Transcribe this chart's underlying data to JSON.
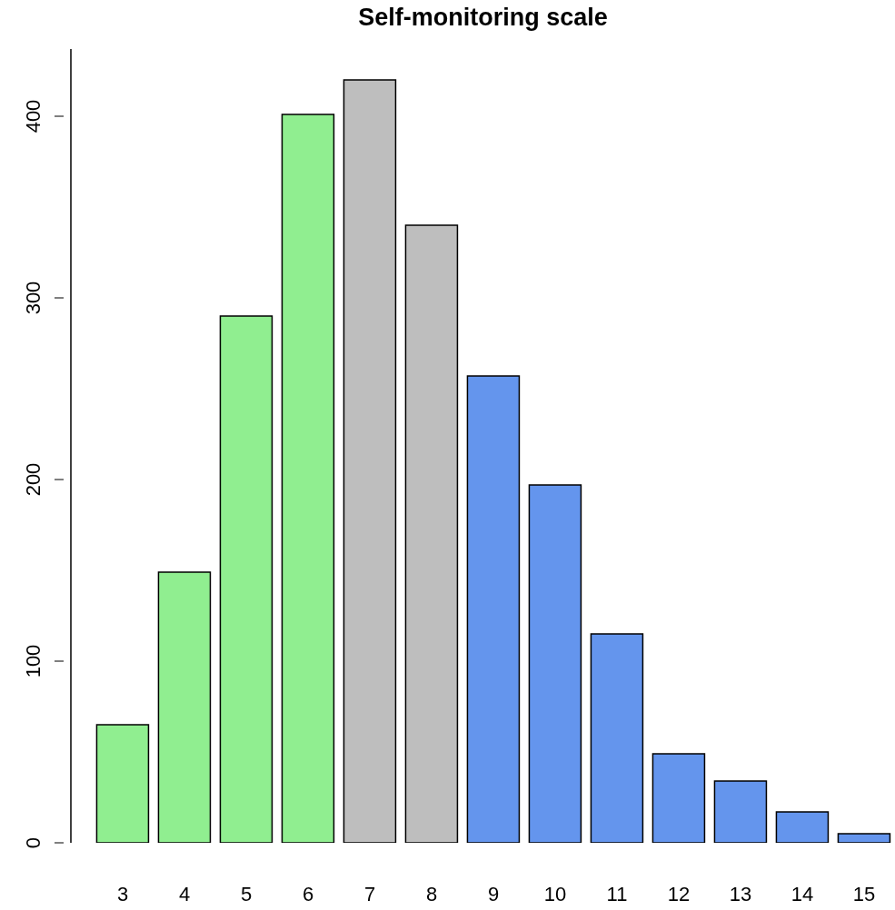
{
  "chart_data": {
    "type": "bar",
    "title": "Self-monitoring scale",
    "categories": [
      "3",
      "4",
      "5",
      "6",
      "7",
      "8",
      "9",
      "10",
      "11",
      "12",
      "13",
      "14",
      "15"
    ],
    "values": [
      65,
      149,
      290,
      401,
      420,
      340,
      257,
      197,
      115,
      49,
      34,
      17,
      5
    ],
    "colors": [
      "#90ee90",
      "#90ee90",
      "#90ee90",
      "#90ee90",
      "#bebebe",
      "#bebebe",
      "#6495ed",
      "#6495ed",
      "#6495ed",
      "#6495ed",
      "#6495ed",
      "#6495ed",
      "#6495ed"
    ],
    "ylim": [
      0,
      437
    ],
    "yticks": [
      0,
      100,
      200,
      300,
      400
    ],
    "grid": false
  }
}
